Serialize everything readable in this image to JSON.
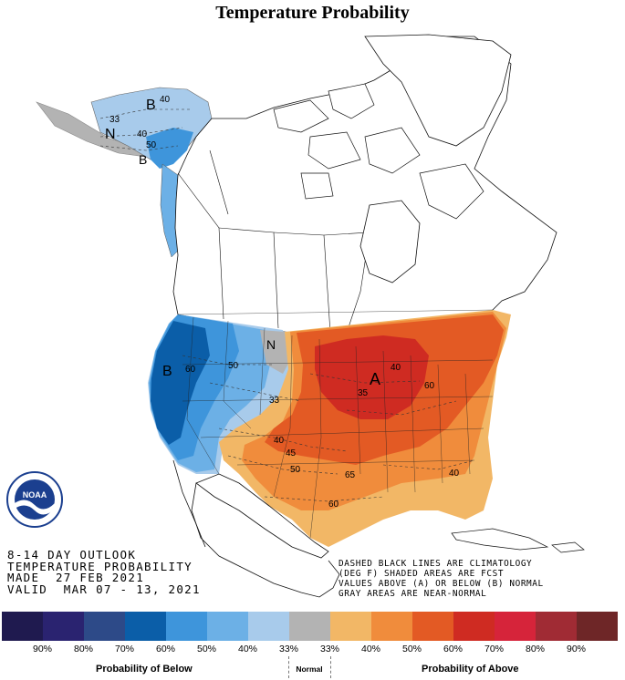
{
  "title": "Temperature Probability",
  "outlook": {
    "line1": "8-14 DAY OUTLOOK",
    "line2": "TEMPERATURE PROBABILITY",
    "line3": "MADE  27 FEB 2021",
    "line4": "VALID  MAR 07 - 13, 2021"
  },
  "note": {
    "line1": "DASHED BLACK LINES ARE CLIMATOLOGY",
    "line2": "(DEG F) SHADED AREAS ARE FCST",
    "line3": "VALUES ABOVE (A) OR BELOW (B) NORMAL",
    "line4": "GRAY AREAS ARE NEAR-NORMAL"
  },
  "logo_text": "NOAA",
  "map_labels": {
    "below_ak": "B",
    "below_ak2": "B",
    "normal_ak": "N",
    "below_west": "B",
    "normal_mt": "N",
    "above_gl": "A",
    "c40_ak": "40",
    "c33_ak": "33",
    "c40_ak2": "40",
    "c50_ak": "50",
    "c60_west": "60",
    "c50_west": "50",
    "c33_west": "33",
    "c40_south": "40",
    "c45_south": "45",
    "c50_south": "50",
    "c35_gl": "35",
    "c40_gl": "40",
    "c60_east": "60",
    "c65_se": "65",
    "c60_se": "60",
    "c40_se": "40"
  },
  "legend": {
    "below_label": "Probability of Below",
    "normal_label": "Normal",
    "above_label": "Probability of Above",
    "items": [
      {
        "pct": "90%",
        "color": "#1f1a4f"
      },
      {
        "pct": "80%",
        "color": "#2a2370"
      },
      {
        "pct": "70%",
        "color": "#2d4a88"
      },
      {
        "pct": "60%",
        "color": "#0b5ea8"
      },
      {
        "pct": "50%",
        "color": "#3e95db"
      },
      {
        "pct": "40%",
        "color": "#6cb0e6"
      },
      {
        "pct": "33%",
        "color": "#a8cbeb"
      },
      {
        "pct": "33%",
        "color": "#b3b3b3"
      },
      {
        "pct": "40%",
        "color": "#f2b766"
      },
      {
        "pct": "50%",
        "color": "#f08c3c"
      },
      {
        "pct": "60%",
        "color": "#e35a24"
      },
      {
        "pct": "70%",
        "color": "#cf2b22"
      },
      {
        "pct": "80%",
        "color": "#d6243a"
      },
      {
        "pct": "90%",
        "color": "#a02b34"
      },
      {
        "pct": "",
        "color": "#6e2627"
      }
    ]
  }
}
